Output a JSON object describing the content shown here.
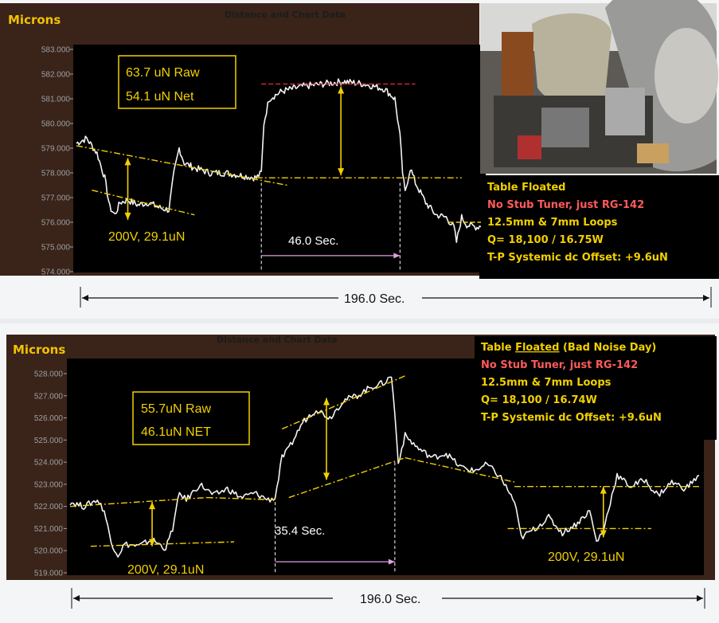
{
  "colors": {
    "trace": "#f3f3f3",
    "accent": "#f2d000",
    "dash_red": "#e02a2a",
    "dash_pink": "#e0a0e0",
    "info_red": "#ff5a5a"
  },
  "chart_data": [
    {
      "type": "line",
      "title": "Distance and Chart Data",
      "ylabel": "Microns",
      "ylim": [
        574.0,
        583.0
      ],
      "yticks": [
        "574.000",
        "575.000",
        "576.000",
        "577.000",
        "578.000",
        "579.000",
        "580.000",
        "581.000",
        "582.000",
        "583.000"
      ],
      "duration_label": "196.0 Sec.",
      "x_range_sec": 196.0,
      "series": [
        {
          "points": [
            [
              0,
              579.2
            ],
            [
              4,
              579.4
            ],
            [
              8,
              578.8
            ],
            [
              11,
              577.8
            ],
            [
              13,
              576.6
            ],
            [
              15,
              576.3
            ],
            [
              17,
              576.8
            ],
            [
              20,
              576.9
            ],
            [
              24,
              576.7
            ],
            [
              28,
              576.8
            ],
            [
              32,
              576.6
            ],
            [
              36,
              576.5
            ],
            [
              38,
              578.0
            ],
            [
              40,
              579.0
            ],
            [
              42,
              578.4
            ],
            [
              46,
              578.2
            ],
            [
              52,
              578.0
            ],
            [
              58,
              578.0
            ],
            [
              64,
              577.9
            ],
            [
              70,
              577.8
            ],
            [
              72,
              578.0
            ],
            [
              73,
              580.0
            ],
            [
              75,
              581.0
            ],
            [
              80,
              581.3
            ],
            [
              88,
              581.5
            ],
            [
              96,
              581.6
            ],
            [
              104,
              581.7
            ],
            [
              112,
              581.6
            ],
            [
              120,
              581.4
            ],
            [
              124,
              581.0
            ],
            [
              126,
              579.5
            ],
            [
              127,
              578.0
            ],
            [
              128,
              577.2
            ],
            [
              130,
              578.2
            ],
            [
              132,
              577.6
            ],
            [
              136,
              576.8
            ],
            [
              140,
              576.3
            ],
            [
              144,
              576.2
            ],
            [
              147,
              575.8
            ],
            [
              148,
              575.2
            ],
            [
              150,
              576.2
            ],
            [
              152,
              575.9
            ],
            [
              156,
              575.8
            ],
            [
              160,
              576.0
            ]
          ]
        }
      ],
      "annotations": {
        "raw_label": "63.7 uN Raw",
        "net_label": "54.1 uN Net",
        "calib_label": "200V, 29.1uN",
        "pulse_label": "46.0 Sec."
      },
      "info": [
        {
          "text": "Table Floated",
          "color": "#f2d000"
        },
        {
          "text": "No Stub Tuner, just RG-142",
          "color": "#ff5a5a"
        },
        {
          "text": "12.5mm & 7mm Loops",
          "color": "#f2d000"
        },
        {
          "text": "Q= 18,100 / 16.75W",
          "color": "#f2d000"
        },
        {
          "text": "T-P Systemic dc Offset: +9.6uN",
          "color": "#f2d000"
        }
      ]
    },
    {
      "type": "line",
      "title": "Distance and Chart Data",
      "ylabel": "Microns",
      "ylim": [
        519.0,
        528.0
      ],
      "yticks": [
        "519.000",
        "520.000",
        "521.000",
        "522.000",
        "523.000",
        "524.000",
        "525.000",
        "526.000",
        "527.000",
        "528.000"
      ],
      "duration_label": "196.0 Sec.",
      "x_range_sec": 196.0,
      "series": [
        {
          "points": [
            [
              0,
              522.2
            ],
            [
              4,
              522.0
            ],
            [
              8,
              522.3
            ],
            [
              10,
              521.8
            ],
            [
              12,
              520.4
            ],
            [
              14,
              519.8
            ],
            [
              16,
              520.3
            ],
            [
              20,
              520.2
            ],
            [
              24,
              520.5
            ],
            [
              28,
              520.1
            ],
            [
              30,
              521.0
            ],
            [
              32,
              522.6
            ],
            [
              34,
              522.3
            ],
            [
              38,
              523.0
            ],
            [
              42,
              522.5
            ],
            [
              46,
              522.8
            ],
            [
              50,
              522.4
            ],
            [
              54,
              522.6
            ],
            [
              58,
              522.3
            ],
            [
              60,
              522.4
            ],
            [
              62,
              524.2
            ],
            [
              64,
              524.6
            ],
            [
              68,
              525.8
            ],
            [
              72,
              526.4
            ],
            [
              76,
              526.0
            ],
            [
              80,
              526.8
            ],
            [
              84,
              527.0
            ],
            [
              88,
              527.4
            ],
            [
              92,
              527.6
            ],
            [
              94,
              527.9
            ],
            [
              95,
              526.2
            ],
            [
              96,
              524.0
            ],
            [
              98,
              525.2
            ],
            [
              102,
              524.6
            ],
            [
              106,
              524.2
            ],
            [
              110,
              524.4
            ],
            [
              114,
              523.8
            ],
            [
              118,
              523.6
            ],
            [
              122,
              523.9
            ],
            [
              126,
              523.3
            ],
            [
              130,
              522.2
            ],
            [
              132,
              520.6
            ],
            [
              136,
              521.0
            ],
            [
              140,
              521.5
            ],
            [
              144,
              520.8
            ],
            [
              148,
              521.2
            ],
            [
              152,
              521.8
            ],
            [
              154,
              520.4
            ],
            [
              156,
              520.9
            ],
            [
              158,
              522.2
            ],
            [
              160,
              523.4
            ],
            [
              164,
              522.9
            ],
            [
              168,
              523.2
            ],
            [
              172,
              522.5
            ],
            [
              176,
              523.1
            ],
            [
              180,
              522.8
            ],
            [
              184,
              523.4
            ]
          ]
        }
      ],
      "annotations": {
        "raw_label": "55.7uN Raw",
        "net_label": "46.1uN NET",
        "calib_label_left": "200V, 29.1uN",
        "calib_label_right": "200V, 29.1uN",
        "pulse_label": "35.4 Sec."
      },
      "info": [
        {
          "parts": [
            {
              "text": "Table ",
              "u": false
            },
            {
              "text": "Floated",
              "u": true
            },
            {
              "text": " (Bad Noise Day)",
              "u": false
            }
          ],
          "color": "#f2d000"
        },
        {
          "text": "No Stub Tuner, just RG-142",
          "color": "#ff5a5a"
        },
        {
          "text": "12.5mm & 7mm Loops",
          "color": "#f2d000"
        },
        {
          "text": "Q= 18,100 / 16.74W",
          "color": "#f2d000"
        },
        {
          "text": "T-P Systemic dc Offset: +9.6uN",
          "color": "#f2d000"
        }
      ]
    }
  ]
}
